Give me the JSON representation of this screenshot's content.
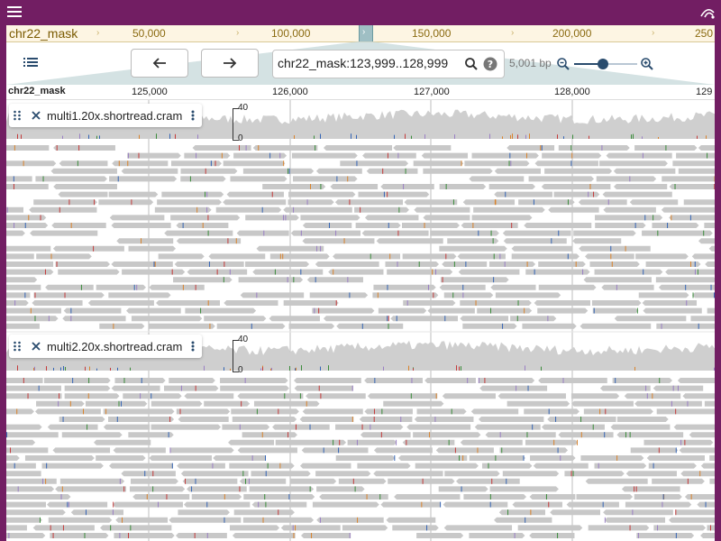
{
  "appbar": {
    "menu_icon": "hamburger-menu-icon",
    "logo_icon": "jbrowse-logo-icon",
    "accent": "#721e63"
  },
  "overview": {
    "chromosome": "chr22_mask",
    "ticks": [
      "50,000",
      "100,000",
      "150,000",
      "200,000",
      "250"
    ]
  },
  "toolbar": {
    "tracks_icon": "track-selector-icon",
    "back_icon": "arrow-left-icon",
    "forward_icon": "arrow-right-icon",
    "location": "chr22_mask:123,999..128,999",
    "search_icon": "search-icon",
    "help_icon": "help-icon",
    "bp_label": "5,001 bp",
    "zoom_out_icon": "zoom-out-icon",
    "zoom_in_icon": "zoom-in-icon",
    "zoom_level": 0.45
  },
  "ruler": {
    "chromosome": "chr22_mask",
    "ticks": [
      "125,000",
      "126,000",
      "127,000",
      "128,000",
      "129"
    ]
  },
  "tracks": [
    {
      "name": "multi1.20x.shortread.cram",
      "axis_max": "40",
      "axis_min": "0"
    },
    {
      "name": "multi2.20x.shortread.cram",
      "axis_max": "40",
      "axis_min": "0"
    }
  ]
}
